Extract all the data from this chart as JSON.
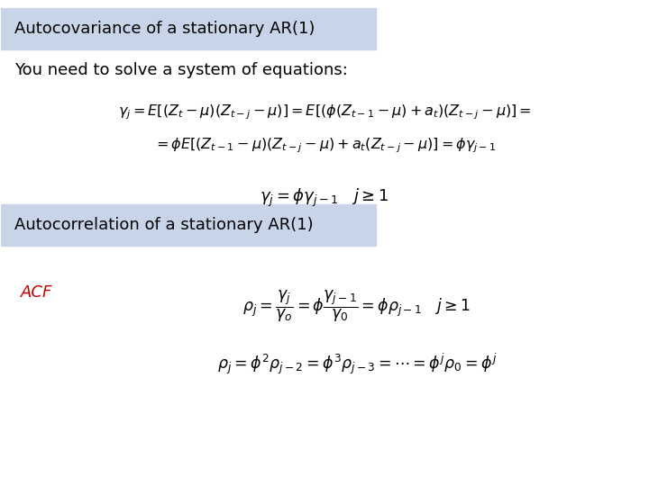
{
  "title1": "Autocovariance of a stationary AR(1)",
  "subtitle": "You need to solve a system of equations:",
  "eq1_line1": "$\\gamma_j = E\\left[(Z_t - \\mu)(Z_{t-j} - \\mu)\\right] = E\\left[(\\phi(Z_{t-1} - \\mu) + a_t)(Z_{t-j} - \\mu)\\right] =$",
  "eq1_line2": "$= \\phi E\\left[(Z_{t-1} - \\mu)(Z_{t-j} - \\mu) + a_t(Z_{t-j} - \\mu)\\right] = \\phi\\gamma_{j-1}$",
  "eq2": "$\\gamma_j = \\phi\\gamma_{j-1} \\quad j \\geq 1$",
  "title2": "Autocorrelation of a stationary AR(1)",
  "acf_label": "ACF",
  "eq3": "$\\rho_j = \\dfrac{\\gamma_j}{\\gamma_o} = \\phi\\dfrac{\\gamma_{j-1}}{\\gamma_0} = \\phi\\rho_{j-1} \\quad j \\geq 1$",
  "eq4": "$\\rho_j = \\phi^2\\rho_{j-2} = \\phi^3\\rho_{j-3} = \\cdots = \\phi^j\\rho_0 = \\phi^j$",
  "bg_color": "#ffffff",
  "box_color": "#c8d4e8",
  "text_color": "#000000",
  "acf_color": "#cc0000",
  "title_fontsize": 13,
  "subtitle_fontsize": 13,
  "eq_fontsize": 14,
  "acf_fontsize": 13
}
